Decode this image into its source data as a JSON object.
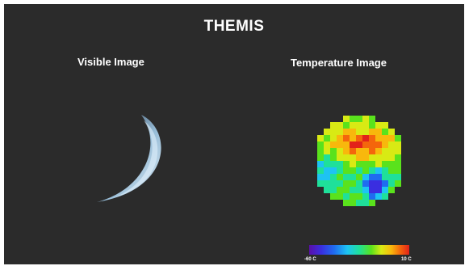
{
  "title": "THEMIS",
  "panels": {
    "visible": {
      "label": "Visible Image"
    },
    "temperature": {
      "label": "Temperature Image"
    }
  },
  "colorbar": {
    "min_label": "-60 C",
    "max_label": "10 C",
    "colors": [
      "#5a0fa8",
      "#3a2ee0",
      "#1f6cf0",
      "#1ec3f3",
      "#1fe09a",
      "#5ae21c",
      "#d8ea14",
      "#f8b80c",
      "#f4660c",
      "#e2221a"
    ]
  },
  "colors": {
    "background": "#2b2b2b",
    "text": "#ffffff"
  }
}
